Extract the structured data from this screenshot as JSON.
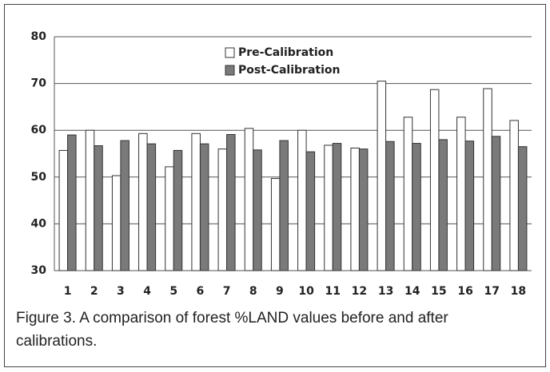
{
  "chart_data": {
    "type": "bar",
    "categories": [
      "1",
      "2",
      "3",
      "4",
      "5",
      "6",
      "7",
      "8",
      "9",
      "10",
      "11",
      "12",
      "13",
      "14",
      "15",
      "16",
      "17",
      "18"
    ],
    "series": [
      {
        "name": "Pre-Calibration",
        "color": "#ffffff",
        "values": [
          55.7,
          60,
          50.3,
          59.3,
          52.2,
          59.3,
          56,
          60.4,
          49.7,
          60,
          56.8,
          56.2,
          70.5,
          62.8,
          68.7,
          62.8,
          68.9,
          62.1
        ]
      },
      {
        "name": "Post-Calibration",
        "color": "#7a7a7a",
        "values": [
          59,
          56.7,
          57.8,
          57.1,
          55.7,
          57.1,
          59.1,
          55.8,
          57.8,
          55.4,
          57.2,
          56,
          57.6,
          57.2,
          58,
          57.7,
          58.7,
          56.5
        ]
      }
    ],
    "ylim": [
      30,
      80
    ],
    "yticks": [
      30,
      40,
      50,
      60,
      70,
      80
    ],
    "grid": true,
    "legend": "top",
    "caption": "Figure 3. A comparison of forest %LAND values before and after calibrations."
  }
}
